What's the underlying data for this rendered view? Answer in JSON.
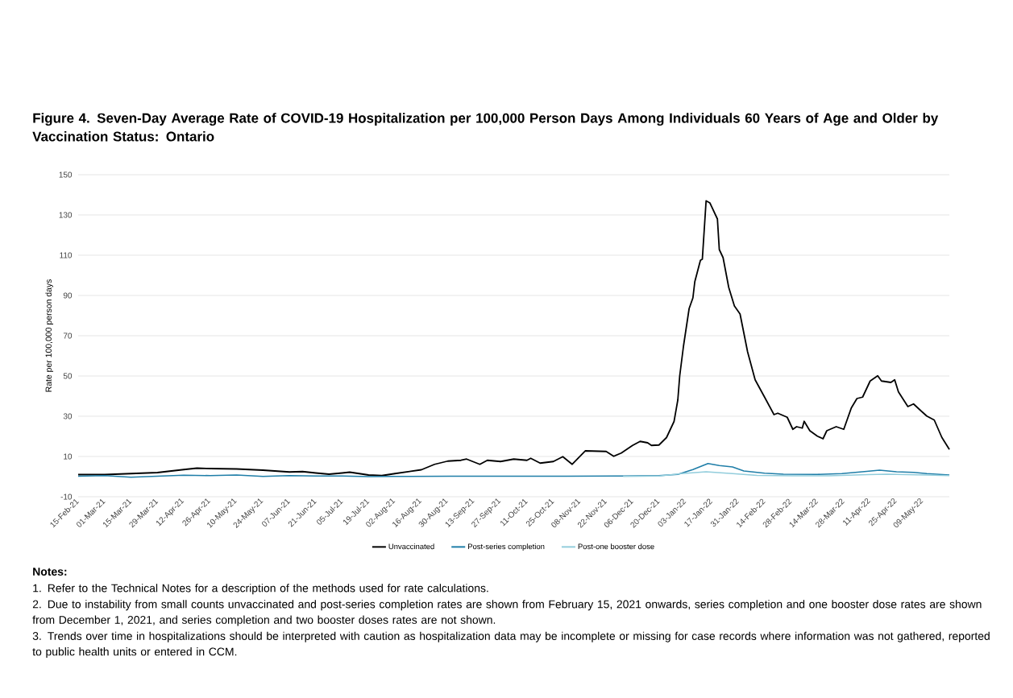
{
  "chart_data": {
    "type": "line",
    "title": "Figure 4. Seven-Day Average Rate of COVID-19 Hospitalization per 100,000 Person Days Among Individuals 60 Years of Age and Older by Vaccination Status: Ontario",
    "ylabel": "Rate per 100,000 person days",
    "xlim": [
      "2021-02-15",
      "2022-05-23"
    ],
    "ylim": [
      -10,
      150
    ],
    "yticks": [
      -10,
      10,
      30,
      50,
      70,
      90,
      110,
      130,
      150
    ],
    "xticks": [
      {
        "value": "2021-02-15",
        "label": "15-Feb-21"
      },
      {
        "value": "2021-03-01",
        "label": "01-Mar-21"
      },
      {
        "value": "2021-03-15",
        "label": "15-Mar-21"
      },
      {
        "value": "2021-03-29",
        "label": "29-Mar-21"
      },
      {
        "value": "2021-04-12",
        "label": "12-Apr-21"
      },
      {
        "value": "2021-04-26",
        "label": "26-Apr-21"
      },
      {
        "value": "2021-05-10",
        "label": "10-May-21"
      },
      {
        "value": "2021-05-24",
        "label": "24-May-21"
      },
      {
        "value": "2021-06-07",
        "label": "07-Jun-21"
      },
      {
        "value": "2021-06-21",
        "label": "21-Jun-21"
      },
      {
        "value": "2021-07-05",
        "label": "05-Jul-21"
      },
      {
        "value": "2021-07-19",
        "label": "19-Jul-21"
      },
      {
        "value": "2021-08-02",
        "label": "02-Aug-21"
      },
      {
        "value": "2021-08-16",
        "label": "16-Aug-21"
      },
      {
        "value": "2021-08-30",
        "label": "30-Aug-21"
      },
      {
        "value": "2021-09-13",
        "label": "13-Sep-21"
      },
      {
        "value": "2021-09-27",
        "label": "27-Sep-21"
      },
      {
        "value": "2021-10-11",
        "label": "11-Oct-21"
      },
      {
        "value": "2021-10-25",
        "label": "25-Oct-21"
      },
      {
        "value": "2021-11-08",
        "label": "08-Nov-21"
      },
      {
        "value": "2021-11-22",
        "label": "22-Nov-21"
      },
      {
        "value": "2021-12-06",
        "label": "06-Dec-21"
      },
      {
        "value": "2021-12-20",
        "label": "20-Dec-21"
      },
      {
        "value": "2022-01-03",
        "label": "03-Jan-22"
      },
      {
        "value": "2022-01-17",
        "label": "17-Jan-22"
      },
      {
        "value": "2022-01-31",
        "label": "31-Jan-22"
      },
      {
        "value": "2022-02-14",
        "label": "14-Feb-22"
      },
      {
        "value": "2022-02-28",
        "label": "28-Feb-22"
      },
      {
        "value": "2022-03-14",
        "label": "14-Mar-22"
      },
      {
        "value": "2022-03-28",
        "label": "28-Mar-22"
      },
      {
        "value": "2022-04-11",
        "label": "11-Apr-22"
      },
      {
        "value": "2022-04-25",
        "label": "25-Apr-22"
      },
      {
        "value": "2022-05-09",
        "label": "09-May-22"
      }
    ],
    "grid": "y",
    "legend": "bottom",
    "series": [
      {
        "name": "Unvaccinated",
        "color": "#000000",
        "x": [
          "2021-02-15",
          "2021-03-01",
          "2021-03-15",
          "2021-03-29",
          "2021-04-12",
          "2021-04-19",
          "2021-04-26",
          "2021-05-10",
          "2021-05-24",
          "2021-06-07",
          "2021-06-14",
          "2021-06-21",
          "2021-06-28",
          "2021-07-05",
          "2021-07-09",
          "2021-07-19",
          "2021-07-26",
          "2021-08-02",
          "2021-08-16",
          "2021-08-23",
          "2021-08-30",
          "2021-09-06",
          "2021-09-09",
          "2021-09-16",
          "2021-09-20",
          "2021-09-27",
          "2021-10-04",
          "2021-10-11",
          "2021-10-13",
          "2021-10-18",
          "2021-10-25",
          "2021-10-30",
          "2021-11-04",
          "2021-11-11",
          "2021-11-22",
          "2021-11-26",
          "2021-11-30",
          "2021-12-06",
          "2021-12-10",
          "2021-12-14",
          "2021-12-16",
          "2021-12-20",
          "2021-12-24",
          "2021-12-28",
          "2021-12-30",
          "2021-12-31",
          "2022-01-02",
          "2022-01-05",
          "2022-01-07",
          "2022-01-08",
          "2022-01-11",
          "2022-01-12",
          "2022-01-14",
          "2022-01-16",
          "2022-01-18",
          "2022-01-20",
          "2022-01-21",
          "2022-01-23",
          "2022-01-26",
          "2022-01-29",
          "2022-02-01",
          "2022-02-05",
          "2022-02-09",
          "2022-02-14",
          "2022-02-19",
          "2022-02-21",
          "2022-02-26",
          "2022-03-01",
          "2022-03-03",
          "2022-03-06",
          "2022-03-07",
          "2022-03-10",
          "2022-03-14",
          "2022-03-17",
          "2022-03-19",
          "2022-03-24",
          "2022-03-28",
          "2022-04-01",
          "2022-04-04",
          "2022-04-07",
          "2022-04-11",
          "2022-04-15",
          "2022-04-17",
          "2022-04-22",
          "2022-04-24",
          "2022-04-26",
          "2022-05-01",
          "2022-05-04",
          "2022-05-07",
          "2022-05-11",
          "2022-05-15",
          "2022-05-19",
          "2022-05-23"
        ],
        "values": [
          1.0,
          1.0,
          1.5,
          2.0,
          3.5,
          4.2,
          4.0,
          3.8,
          3.2,
          2.3,
          2.5,
          1.8,
          1.2,
          1.8,
          2.2,
          0.8,
          0.5,
          1.5,
          3.4,
          6.1,
          7.7,
          8.1,
          8.7,
          6.1,
          8.1,
          7.5,
          8.7,
          8.1,
          9.1,
          6.7,
          7.5,
          9.9,
          6.1,
          12.8,
          12.5,
          10.1,
          11.7,
          15.5,
          17.5,
          16.8,
          15.5,
          15.7,
          19.4,
          27.4,
          38.1,
          50,
          64.8,
          83.5,
          88.8,
          96.8,
          107.5,
          108,
          137,
          136,
          132,
          128,
          112.8,
          108.8,
          94,
          84.8,
          80.8,
          62,
          48.1,
          39.5,
          30.8,
          31.5,
          29.5,
          23.5,
          24.8,
          24.1,
          27.5,
          22.8,
          20.1,
          18.8,
          22.8,
          24.8,
          23.5,
          34.1,
          38.8,
          39.5,
          47.5,
          50.1,
          47.5,
          46.8,
          48.1,
          42.1,
          34.8,
          36.1,
          33.5,
          30.1,
          28.1,
          19.5,
          13.5
        ]
      },
      {
        "name": "Post-series completion",
        "color": "#1f7ea8",
        "x": [
          "2021-02-15",
          "2021-03-01",
          "2021-03-15",
          "2021-03-29",
          "2021-04-12",
          "2021-04-26",
          "2021-05-10",
          "2021-05-24",
          "2021-06-07",
          "2021-06-21",
          "2021-07-05",
          "2021-07-19",
          "2021-08-02",
          "2021-09-01",
          "2021-10-01",
          "2021-11-01",
          "2021-12-01",
          "2021-12-20",
          "2021-12-30",
          "2022-01-07",
          "2022-01-15",
          "2022-01-21",
          "2022-01-28",
          "2022-02-03",
          "2022-02-14",
          "2022-02-24",
          "2022-03-14",
          "2022-03-27",
          "2022-04-08",
          "2022-04-16",
          "2022-04-25",
          "2022-05-04",
          "2022-05-11",
          "2022-05-23"
        ],
        "values": [
          0.2,
          0.5,
          -0.3,
          0.2,
          0.7,
          0.5,
          0.8,
          0.1,
          0.5,
          0.3,
          0.3,
          0.0,
          0.1,
          0.2,
          0.2,
          0.2,
          0.3,
          0.5,
          1.1,
          3.5,
          6.5,
          5.5,
          4.8,
          2.8,
          1.7,
          1.2,
          1.1,
          1.5,
          2.5,
          3.2,
          2.4,
          2.1,
          1.5,
          0.8
        ]
      },
      {
        "name": "Post-one booster dose",
        "color": "#92cddc",
        "x": [
          "2021-12-01",
          "2021-12-20",
          "2022-01-01",
          "2022-01-14",
          "2022-01-28",
          "2022-02-10",
          "2022-03-01",
          "2022-03-20",
          "2022-04-10",
          "2022-04-20",
          "2022-05-10",
          "2022-05-23"
        ],
        "values": [
          0.1,
          0.3,
          1.5,
          2.4,
          1.5,
          0.6,
          0.4,
          0.4,
          1.0,
          1.2,
          0.8,
          0.5
        ]
      }
    ],
    "annotations": [
      "Notes:",
      "1.\tRefer to the Technical Notes for a description of the methods used for rate calculations.",
      "2.\tDue to instability from small counts unvaccinated and post-series completion rates are shown from February 15, 2021 onwards, series completion and one booster dose rates are shown from December 1, 2021, and series completion and two booster doses rates are not shown.",
      "3.\tTrends over time in hospitalizations should be interpreted with caution as hospitalization data may be incomplete or missing for case records where information was not gathered, reported to public health units or entered in CCM."
    ]
  }
}
